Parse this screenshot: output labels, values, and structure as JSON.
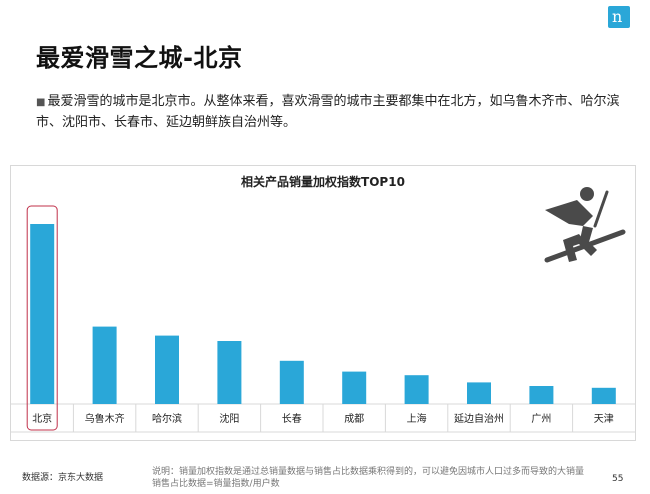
{
  "page": {
    "title": "最爱滑雪之城-北京",
    "intro": "最爱滑雪的城市是北京市。从整体来看，喜欢滑雪的城市主要都集中在北方，如乌鲁木齐市、哈尔滨市、沈阳市、长春市、延边朝鲜族自治州等。",
    "footer_source": "数据源：京东大数据",
    "footer_note": "说明：销量加权指数是通过总销量数据与销售占比数据乘积得到的，可以避免因城市人口过多而导致的大销量销售占比数据=销量指数/用户数",
    "page_number": "55"
  },
  "icons": {
    "logo": "brand-logo-icon",
    "skier": "skier-icon"
  },
  "colors": {
    "bar": "#2aa7d8",
    "highlight_outline": "#c0304a",
    "logo": "#2aa7d8"
  },
  "chart_data": {
    "type": "bar",
    "title": "相关产品销量加权指数TOP10",
    "categories": [
      "北京",
      "乌鲁木齐",
      "哈尔滨",
      "沈阳",
      "长春",
      "成都",
      "上海",
      "延边自治州",
      "广州",
      "天津"
    ],
    "values": [
      100,
      43,
      38,
      35,
      24,
      18,
      16,
      12,
      10,
      9
    ],
    "ylim": [
      0,
      110
    ],
    "highlight_index": 0,
    "grid": false,
    "legend": "none"
  }
}
